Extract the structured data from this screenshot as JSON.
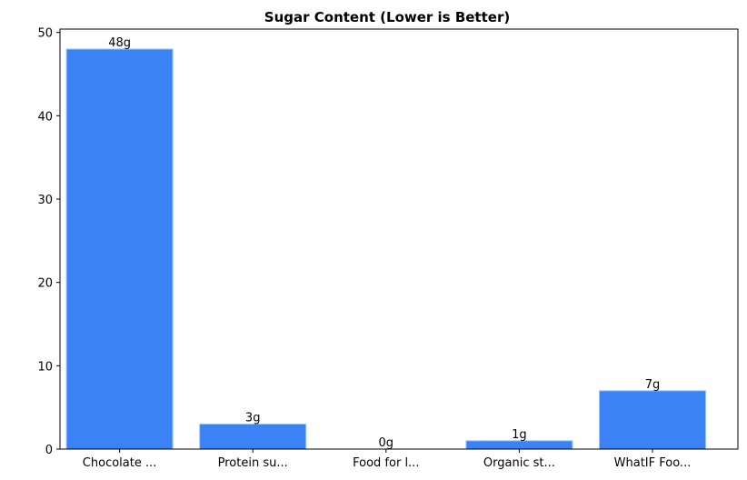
{
  "chart_data": {
    "type": "bar",
    "title": "Sugar Content (Lower is Better)",
    "xlabel": "",
    "ylabel": "",
    "categories": [
      "Chocolate ...",
      "Protein su...",
      "Food for l...",
      "Organic st...",
      "WhatIF Foo..."
    ],
    "values": [
      48,
      3,
      0,
      1,
      7
    ],
    "data_labels": [
      "48g",
      "3g",
      "0g",
      "1g",
      "7g"
    ],
    "ylim": [
      0,
      50.4
    ],
    "yticks": [
      0,
      10,
      20,
      30,
      40,
      50
    ],
    "grid": false,
    "legend": "none",
    "bar_color": "#3b82f6",
    "bar_edge_color": "#93c5fd"
  }
}
